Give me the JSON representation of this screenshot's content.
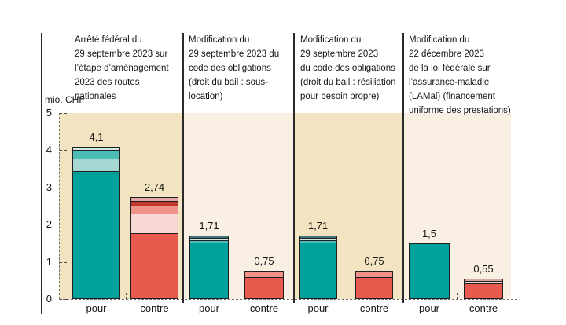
{
  "figure": {
    "y_axis": {
      "unit_label": "mio. CHF",
      "ticks": [
        5,
        4,
        3,
        2,
        1,
        0
      ]
    }
  },
  "chart_data": {
    "type": "bar",
    "stacked": true,
    "title": "",
    "ylabel": "mio. CHF",
    "ylim": [
      0,
      5
    ],
    "grid": false,
    "legend": "none",
    "categories": [
      "pour",
      "contre"
    ],
    "colors": {
      "teal_dark": "#00a29b",
      "teal_medium": "#4dbcb6",
      "teal_light": "#a6d7d3",
      "teal_pale": "#d0e8e6",
      "teal_slate": "#41767c",
      "red": "#e75a4d",
      "pink_pale": "#f8d8d3",
      "salmon": "#ef938a",
      "red_dark": "#bf3a2e",
      "pink_mauve": "#e0a5a4",
      "pink_muted": "#d3a89f",
      "panel_bg_beige": "#f2e4c0",
      "panel_bg_cream": "#f9efe2",
      "bar_border": "#1f1f1f",
      "axis_line": "#2a2a2a"
    },
    "panels": [
      {
        "title": "Arrêté fédéral du\n29 septembre 2023 sur\nl’étape d’aménagement\n2023 des routes\nnationales",
        "bars": [
          {
            "category": "pour",
            "total": 4.1,
            "label": "4,1",
            "segments": [
              {
                "color": "teal_dark",
                "value": 3.47
              },
              {
                "color": "teal_light",
                "value": 0.33
              },
              {
                "color": "teal_medium",
                "value": 0.22
              },
              {
                "color": "teal_pale",
                "value": 0.08
              }
            ]
          },
          {
            "category": "contre",
            "total": 2.74,
            "label": "2,74",
            "segments": [
              {
                "color": "red",
                "value": 1.8
              },
              {
                "color": "pink_pale",
                "value": 0.52
              },
              {
                "color": "salmon",
                "value": 0.21
              },
              {
                "color": "red_dark",
                "value": 0.13
              },
              {
                "color": "pink_mauve",
                "value": 0.08
              }
            ]
          }
        ]
      },
      {
        "title": "Modification du\n29 septembre 2023 du\ncode des obligations\n(droit du bail : sous-\nlocation)",
        "bars": [
          {
            "category": "pour",
            "total": 1.71,
            "label": "1,71",
            "segments": [
              {
                "color": "teal_dark",
                "value": 1.54
              },
              {
                "color": "teal_medium",
                "value": 0.06
              },
              {
                "color": "teal_pale",
                "value": 0.06
              },
              {
                "color": "teal_slate",
                "value": 0.05
              }
            ]
          },
          {
            "category": "contre",
            "total": 0.75,
            "label": "0,75",
            "segments": [
              {
                "color": "red",
                "value": 0.62
              },
              {
                "color": "salmon",
                "value": 0.13
              }
            ]
          }
        ]
      },
      {
        "title": "Modification du\n29 septembre 2023\ndu code des obligations\n(droit du bail : résiliation\npour besoin propre)",
        "bars": [
          {
            "category": "pour",
            "total": 1.71,
            "label": "1,71",
            "segments": [
              {
                "color": "teal_dark",
                "value": 1.54
              },
              {
                "color": "teal_medium",
                "value": 0.06
              },
              {
                "color": "teal_pale",
                "value": 0.06
              },
              {
                "color": "teal_slate",
                "value": 0.05
              }
            ]
          },
          {
            "category": "contre",
            "total": 0.75,
            "label": "0,75",
            "segments": [
              {
                "color": "red",
                "value": 0.62
              },
              {
                "color": "salmon",
                "value": 0.13
              }
            ]
          }
        ]
      },
      {
        "title": "Modification du\n22 décembre 2023\nde la loi fédérale sur\nl’assurance-maladie\n(LAMal) (financement\nuniforme des prestations)",
        "bars": [
          {
            "category": "pour",
            "total": 1.5,
            "label": "1,5",
            "segments": [
              {
                "color": "teal_dark",
                "value": 1.5
              }
            ]
          },
          {
            "category": "contre",
            "total": 0.55,
            "label": "0,55",
            "segments": [
              {
                "color": "red",
                "value": 0.44
              },
              {
                "color": "pink_pale",
                "value": 0.07
              },
              {
                "color": "pink_muted",
                "value": 0.04
              }
            ]
          }
        ]
      }
    ]
  }
}
